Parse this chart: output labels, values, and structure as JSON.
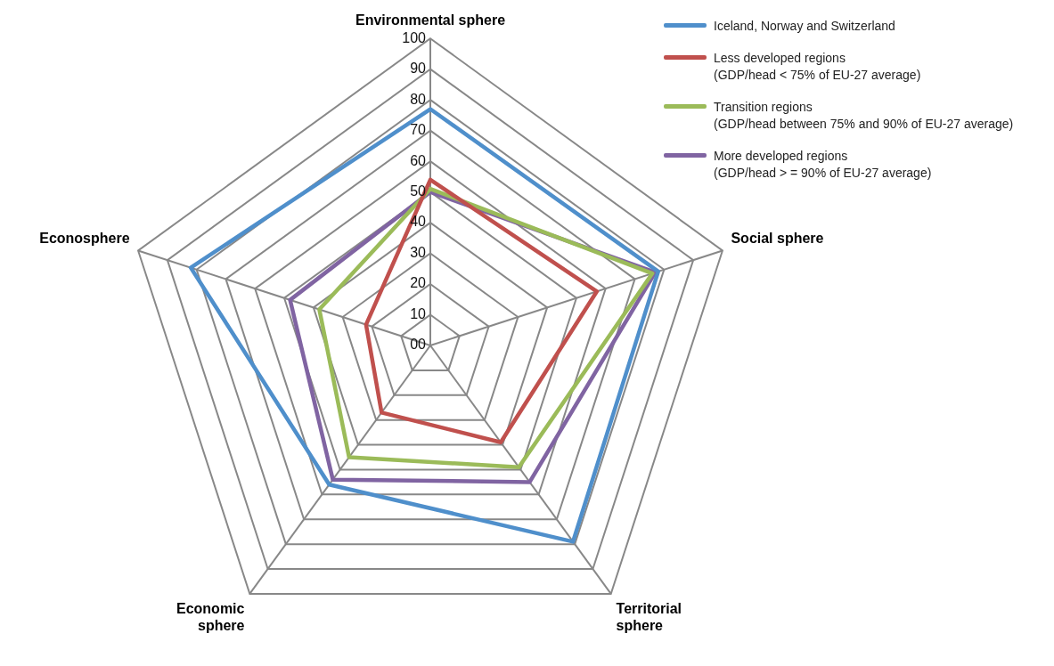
{
  "chart_data": {
    "type": "radar",
    "categories": [
      "Environmental sphere",
      "Social sphere",
      "Territorial\nsphere",
      "Economic\nsphere",
      "Econosphere"
    ],
    "series": [
      {
        "name": "Iceland, Norway and Switzerland",
        "color": "#4f8fcb",
        "values": [
          77,
          78,
          79,
          56,
          82
        ]
      },
      {
        "name": "Less developed regions\n(GDP/head < 75% of EU-27 average)",
        "color": "#c0504d",
        "values": [
          54,
          57,
          39,
          27,
          22
        ]
      },
      {
        "name": "Transition regions\n(GDP/head between 75% and 90% of EU-27 average)",
        "color": "#9bbb59",
        "values": [
          51,
          76,
          49,
          45,
          38
        ]
      },
      {
        "name": "More developed regions\n(GDP/head > = 90% of EU-27 average)",
        "color": "#8064a2",
        "values": [
          50,
          77,
          55,
          54,
          48
        ]
      }
    ],
    "ylim": [
      0,
      100
    ],
    "yticks": [
      {
        "value": 0,
        "label": "00"
      },
      10,
      20,
      30,
      40,
      50,
      60,
      70,
      80,
      90,
      100
    ],
    "grid": true,
    "legend": "top right",
    "marker": "none",
    "line_style": "solid"
  }
}
